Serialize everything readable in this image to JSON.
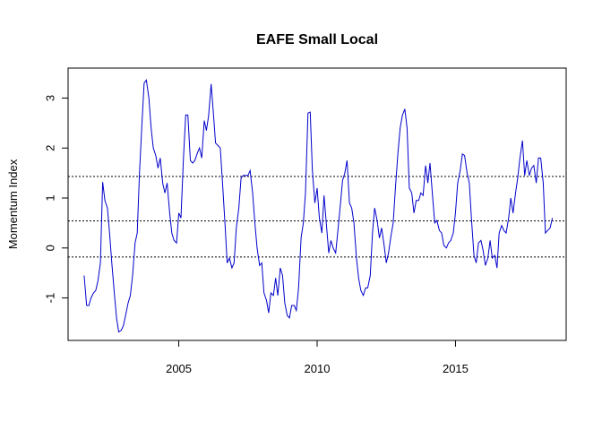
{
  "chart_data": {
    "type": "line",
    "title": "EAFE Small Local",
    "xlabel": "",
    "ylabel": "Momentum Index",
    "xlim": [
      2001.0,
      2019.0
    ],
    "ylim": [
      -1.85,
      3.6
    ],
    "x_ticks": [
      2005,
      2010,
      2015
    ],
    "x_tick_labels": [
      "2005",
      "2010",
      "2015"
    ],
    "y_ticks": [
      -1,
      0,
      1,
      2,
      3
    ],
    "y_tick_labels": [
      "-1",
      "0",
      "1",
      "2",
      "3"
    ],
    "grid": false,
    "legend": "none",
    "colors": {
      "series": "#0000cc",
      "reference_lines": "#000000"
    },
    "reference_lines": [
      {
        "y": 1.43,
        "style": "dotted"
      },
      {
        "y": 0.54,
        "style": "dotted"
      },
      {
        "y": -0.18,
        "style": "dotted"
      }
    ],
    "series": [
      {
        "color": "#0000cc",
        "points": [
          [
            2001.58,
            -0.55
          ],
          [
            2001.67,
            -1.15
          ],
          [
            2001.75,
            -1.15
          ],
          [
            2001.83,
            -1.0
          ],
          [
            2001.92,
            -0.9
          ],
          [
            2002.0,
            -0.85
          ],
          [
            2002.08,
            -0.65
          ],
          [
            2002.17,
            -0.3
          ],
          [
            2002.25,
            1.32
          ],
          [
            2002.33,
            0.95
          ],
          [
            2002.42,
            0.8
          ],
          [
            2002.5,
            0.3
          ],
          [
            2002.58,
            -0.3
          ],
          [
            2002.67,
            -0.9
          ],
          [
            2002.75,
            -1.4
          ],
          [
            2002.83,
            -1.68
          ],
          [
            2002.92,
            -1.65
          ],
          [
            2003.0,
            -1.55
          ],
          [
            2003.08,
            -1.35
          ],
          [
            2003.17,
            -1.1
          ],
          [
            2003.25,
            -0.95
          ],
          [
            2003.33,
            -0.55
          ],
          [
            2003.42,
            0.1
          ],
          [
            2003.5,
            0.3
          ],
          [
            2003.58,
            1.5
          ],
          [
            2003.67,
            2.5
          ],
          [
            2003.75,
            3.3
          ],
          [
            2003.83,
            3.36
          ],
          [
            2003.92,
            3.0
          ],
          [
            2004.0,
            2.4
          ],
          [
            2004.08,
            2.0
          ],
          [
            2004.17,
            1.85
          ],
          [
            2004.25,
            1.6
          ],
          [
            2004.33,
            1.8
          ],
          [
            2004.42,
            1.3
          ],
          [
            2004.5,
            1.1
          ],
          [
            2004.58,
            1.3
          ],
          [
            2004.67,
            0.7
          ],
          [
            2004.75,
            0.3
          ],
          [
            2004.83,
            0.15
          ],
          [
            2004.92,
            0.1
          ],
          [
            2005.0,
            0.7
          ],
          [
            2005.08,
            0.6
          ],
          [
            2005.17,
            1.8
          ],
          [
            2005.25,
            2.66
          ],
          [
            2005.33,
            2.66
          ],
          [
            2005.42,
            1.75
          ],
          [
            2005.5,
            1.7
          ],
          [
            2005.58,
            1.75
          ],
          [
            2005.67,
            1.9
          ],
          [
            2005.75,
            2.0
          ],
          [
            2005.83,
            1.8
          ],
          [
            2005.92,
            2.55
          ],
          [
            2006.0,
            2.35
          ],
          [
            2006.08,
            2.65
          ],
          [
            2006.17,
            3.28
          ],
          [
            2006.25,
            2.7
          ],
          [
            2006.33,
            2.1
          ],
          [
            2006.42,
            2.05
          ],
          [
            2006.5,
            2.0
          ],
          [
            2006.58,
            1.3
          ],
          [
            2006.67,
            0.5
          ],
          [
            2006.75,
            -0.3
          ],
          [
            2006.83,
            -0.2
          ],
          [
            2006.92,
            -0.4
          ],
          [
            2007.0,
            -0.3
          ],
          [
            2007.08,
            0.4
          ],
          [
            2007.17,
            0.8
          ],
          [
            2007.25,
            1.4
          ],
          [
            2007.33,
            1.45
          ],
          [
            2007.42,
            1.45
          ],
          [
            2007.5,
            1.45
          ],
          [
            2007.58,
            1.55
          ],
          [
            2007.67,
            1.1
          ],
          [
            2007.75,
            0.5
          ],
          [
            2007.83,
            0.0
          ],
          [
            2007.92,
            -0.35
          ],
          [
            2008.0,
            -0.3
          ],
          [
            2008.08,
            -0.9
          ],
          [
            2008.17,
            -1.05
          ],
          [
            2008.25,
            -1.3
          ],
          [
            2008.33,
            -0.9
          ],
          [
            2008.42,
            -0.95
          ],
          [
            2008.5,
            -0.6
          ],
          [
            2008.58,
            -0.95
          ],
          [
            2008.67,
            -0.4
          ],
          [
            2008.75,
            -0.55
          ],
          [
            2008.83,
            -1.1
          ],
          [
            2008.92,
            -1.35
          ],
          [
            2009.0,
            -1.4
          ],
          [
            2009.08,
            -1.15
          ],
          [
            2009.17,
            -1.15
          ],
          [
            2009.25,
            -1.25
          ],
          [
            2009.33,
            -0.8
          ],
          [
            2009.42,
            0.2
          ],
          [
            2009.5,
            0.5
          ],
          [
            2009.58,
            1.1
          ],
          [
            2009.67,
            2.7
          ],
          [
            2009.75,
            2.72
          ],
          [
            2009.83,
            1.55
          ],
          [
            2009.92,
            0.9
          ],
          [
            2010.0,
            1.2
          ],
          [
            2010.08,
            0.6
          ],
          [
            2010.17,
            0.3
          ],
          [
            2010.25,
            1.05
          ],
          [
            2010.33,
            0.5
          ],
          [
            2010.42,
            -0.1
          ],
          [
            2010.5,
            0.15
          ],
          [
            2010.58,
            0.0
          ],
          [
            2010.67,
            -0.1
          ],
          [
            2010.75,
            0.35
          ],
          [
            2010.83,
            0.8
          ],
          [
            2010.92,
            1.35
          ],
          [
            2011.0,
            1.5
          ],
          [
            2011.08,
            1.75
          ],
          [
            2011.17,
            0.9
          ],
          [
            2011.25,
            0.8
          ],
          [
            2011.33,
            0.5
          ],
          [
            2011.42,
            -0.2
          ],
          [
            2011.5,
            -0.6
          ],
          [
            2011.58,
            -0.85
          ],
          [
            2011.67,
            -0.95
          ],
          [
            2011.75,
            -0.8
          ],
          [
            2011.83,
            -0.8
          ],
          [
            2011.92,
            -0.55
          ],
          [
            2012.0,
            0.3
          ],
          [
            2012.08,
            0.8
          ],
          [
            2012.17,
            0.55
          ],
          [
            2012.25,
            0.2
          ],
          [
            2012.33,
            0.4
          ],
          [
            2012.42,
            0.05
          ],
          [
            2012.5,
            -0.3
          ],
          [
            2012.58,
            -0.1
          ],
          [
            2012.67,
            0.25
          ],
          [
            2012.75,
            0.5
          ],
          [
            2012.83,
            1.2
          ],
          [
            2012.92,
            1.9
          ],
          [
            2013.0,
            2.4
          ],
          [
            2013.08,
            2.65
          ],
          [
            2013.17,
            2.78
          ],
          [
            2013.25,
            2.4
          ],
          [
            2013.33,
            1.2
          ],
          [
            2013.42,
            1.1
          ],
          [
            2013.5,
            0.7
          ],
          [
            2013.58,
            0.95
          ],
          [
            2013.67,
            0.95
          ],
          [
            2013.75,
            1.1
          ],
          [
            2013.83,
            1.05
          ],
          [
            2013.92,
            1.65
          ],
          [
            2014.0,
            1.3
          ],
          [
            2014.08,
            1.7
          ],
          [
            2014.17,
            1.05
          ],
          [
            2014.25,
            0.5
          ],
          [
            2014.33,
            0.55
          ],
          [
            2014.42,
            0.35
          ],
          [
            2014.5,
            0.3
          ],
          [
            2014.58,
            0.05
          ],
          [
            2014.67,
            0.0
          ],
          [
            2014.75,
            0.1
          ],
          [
            2014.83,
            0.15
          ],
          [
            2014.92,
            0.3
          ],
          [
            2015.0,
            0.7
          ],
          [
            2015.08,
            1.3
          ],
          [
            2015.17,
            1.55
          ],
          [
            2015.25,
            1.88
          ],
          [
            2015.33,
            1.85
          ],
          [
            2015.42,
            1.5
          ],
          [
            2015.5,
            1.3
          ],
          [
            2015.58,
            0.55
          ],
          [
            2015.67,
            -0.15
          ],
          [
            2015.75,
            -0.3
          ],
          [
            2015.83,
            0.1
          ],
          [
            2015.92,
            0.15
          ],
          [
            2016.0,
            -0.05
          ],
          [
            2016.08,
            -0.35
          ],
          [
            2016.17,
            -0.2
          ],
          [
            2016.25,
            0.15
          ],
          [
            2016.33,
            -0.2
          ],
          [
            2016.42,
            -0.15
          ],
          [
            2016.5,
            -0.4
          ],
          [
            2016.58,
            0.3
          ],
          [
            2016.67,
            0.45
          ],
          [
            2016.75,
            0.35
          ],
          [
            2016.83,
            0.3
          ],
          [
            2016.92,
            0.6
          ],
          [
            2017.0,
            1.0
          ],
          [
            2017.08,
            0.7
          ],
          [
            2017.17,
            1.1
          ],
          [
            2017.25,
            1.4
          ],
          [
            2017.33,
            1.8
          ],
          [
            2017.42,
            2.15
          ],
          [
            2017.5,
            1.45
          ],
          [
            2017.58,
            1.75
          ],
          [
            2017.67,
            1.45
          ],
          [
            2017.75,
            1.6
          ],
          [
            2017.83,
            1.65
          ],
          [
            2017.92,
            1.3
          ],
          [
            2018.0,
            1.8
          ],
          [
            2018.08,
            1.8
          ],
          [
            2018.17,
            1.3
          ],
          [
            2018.25,
            0.3
          ],
          [
            2018.33,
            0.35
          ],
          [
            2018.42,
            0.4
          ],
          [
            2018.5,
            0.6
          ]
        ]
      }
    ]
  }
}
